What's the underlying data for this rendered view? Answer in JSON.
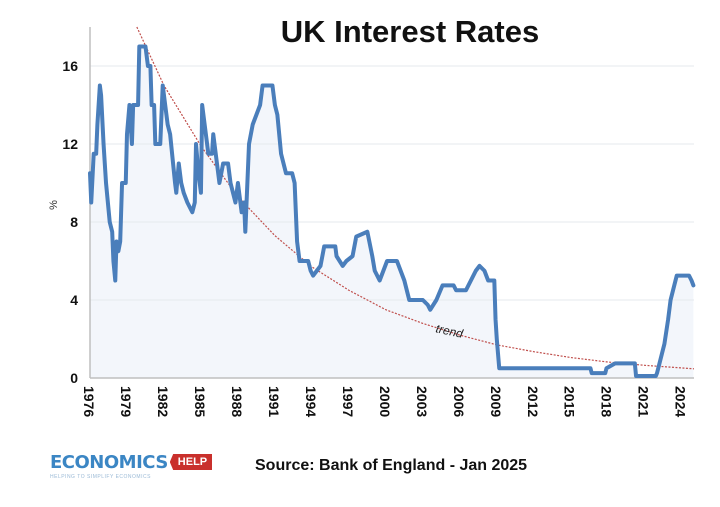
{
  "chart_data": {
    "type": "line",
    "title": "UK Interest Rates",
    "ylabel": "%",
    "xlabel": "",
    "ylim": [
      0,
      18
    ],
    "xlim": [
      1976,
      2025
    ],
    "yticks": [
      "0",
      "4",
      "8",
      "12",
      "16"
    ],
    "xticks": [
      "1976",
      "1979",
      "1982",
      "1985",
      "1988",
      "1991",
      "1994",
      "1997",
      "2000",
      "2003",
      "2006",
      "2009",
      "2012",
      "2015",
      "2018",
      "2021",
      "2024"
    ],
    "grid": "horizontal",
    "colors": {
      "rate": "#4a7ebb",
      "trend": "#c0504d",
      "fill": "#f3f6fb"
    },
    "series": [
      {
        "values": [
          [
            1976.0,
            10.5
          ],
          [
            1976.1,
            9
          ],
          [
            1976.3,
            11.5
          ],
          [
            1976.5,
            11.5
          ],
          [
            1976.6,
            13
          ],
          [
            1976.8,
            15
          ],
          [
            1976.9,
            14.5
          ],
          [
            1977.1,
            12
          ],
          [
            1977.3,
            10
          ],
          [
            1977.6,
            8
          ],
          [
            1977.8,
            7.5
          ],
          [
            1977.9,
            6
          ],
          [
            1978.05,
            5
          ],
          [
            1978.15,
            7
          ],
          [
            1978.3,
            6.5
          ],
          [
            1978.45,
            7
          ],
          [
            1978.6,
            10
          ],
          [
            1978.9,
            10
          ],
          [
            1979.0,
            12.5
          ],
          [
            1979.2,
            14
          ],
          [
            1979.4,
            12
          ],
          [
            1979.5,
            14
          ],
          [
            1979.9,
            14
          ],
          [
            1980.0,
            17
          ],
          [
            1980.5,
            17
          ],
          [
            1980.7,
            16
          ],
          [
            1980.9,
            16
          ],
          [
            1981.0,
            14
          ],
          [
            1981.2,
            14
          ],
          [
            1981.3,
            12
          ],
          [
            1981.7,
            12
          ],
          [
            1981.9,
            15
          ],
          [
            1982.0,
            14.5
          ],
          [
            1982.3,
            13
          ],
          [
            1982.5,
            12.5
          ],
          [
            1982.9,
            10
          ],
          [
            1983.0,
            9.5
          ],
          [
            1983.2,
            11
          ],
          [
            1983.4,
            10
          ],
          [
            1983.6,
            9.5
          ],
          [
            1983.9,
            9
          ],
          [
            1984.3,
            8.5
          ],
          [
            1984.5,
            9
          ],
          [
            1984.6,
            12
          ],
          [
            1984.8,
            10.5
          ],
          [
            1985.0,
            9.5
          ],
          [
            1985.1,
            14
          ],
          [
            1985.4,
            12.5
          ],
          [
            1985.6,
            11.5
          ],
          [
            1985.9,
            11.5
          ],
          [
            1986.0,
            12.5
          ],
          [
            1986.3,
            11
          ],
          [
            1986.5,
            10
          ],
          [
            1986.8,
            11
          ],
          [
            1987.2,
            11
          ],
          [
            1987.4,
            10
          ],
          [
            1987.8,
            9
          ],
          [
            1988.0,
            10
          ],
          [
            1988.3,
            8.5
          ],
          [
            1988.5,
            9
          ],
          [
            1988.6,
            7.5
          ],
          [
            1988.9,
            12
          ],
          [
            1989.2,
            13
          ],
          [
            1989.5,
            13.5
          ],
          [
            1989.8,
            14
          ],
          [
            1990.0,
            15
          ],
          [
            1990.8,
            15
          ],
          [
            1991.0,
            14
          ],
          [
            1991.2,
            13.5
          ],
          [
            1991.5,
            11.5
          ],
          [
            1991.9,
            10.5
          ],
          [
            1992.4,
            10.5
          ],
          [
            1992.6,
            10
          ],
          [
            1992.8,
            7
          ],
          [
            1993.0,
            6
          ],
          [
            1993.7,
            6
          ],
          [
            1993.9,
            5.5
          ],
          [
            1994.1,
            5.25
          ],
          [
            1994.7,
            5.75
          ],
          [
            1995.0,
            6.75
          ],
          [
            1995.9,
            6.75
          ],
          [
            1996.0,
            6.25
          ],
          [
            1996.5,
            5.75
          ],
          [
            1996.8,
            6
          ],
          [
            1997.3,
            6.25
          ],
          [
            1997.6,
            7.25
          ],
          [
            1998.5,
            7.5
          ],
          [
            1998.9,
            6.25
          ],
          [
            1999.1,
            5.5
          ],
          [
            1999.5,
            5
          ],
          [
            1999.8,
            5.5
          ],
          [
            2000.1,
            6
          ],
          [
            2000.9,
            6
          ],
          [
            2001.2,
            5.5
          ],
          [
            2001.5,
            5
          ],
          [
            2001.9,
            4
          ],
          [
            2003.0,
            4
          ],
          [
            2003.4,
            3.75
          ],
          [
            2003.6,
            3.5
          ],
          [
            2004.1,
            4
          ],
          [
            2004.6,
            4.75
          ],
          [
            2005.5,
            4.75
          ],
          [
            2005.7,
            4.5
          ],
          [
            2006.5,
            4.5
          ],
          [
            2006.9,
            5
          ],
          [
            2007.3,
            5.5
          ],
          [
            2007.6,
            5.75
          ],
          [
            2008.0,
            5.5
          ],
          [
            2008.3,
            5
          ],
          [
            2008.8,
            5
          ],
          [
            2008.9,
            3
          ],
          [
            2009.0,
            2
          ],
          [
            2009.2,
            0.5
          ],
          [
            2016.6,
            0.5
          ],
          [
            2016.7,
            0.25
          ],
          [
            2017.8,
            0.25
          ],
          [
            2017.9,
            0.5
          ],
          [
            2018.6,
            0.75
          ],
          [
            2020.2,
            0.75
          ],
          [
            2020.3,
            0.1
          ],
          [
            2021.9,
            0.1
          ],
          [
            2022.0,
            0.25
          ],
          [
            2022.2,
            0.75
          ],
          [
            2022.4,
            1.25
          ],
          [
            2022.6,
            1.75
          ],
          [
            2022.9,
            3
          ],
          [
            2023.1,
            4
          ],
          [
            2023.3,
            4.5
          ],
          [
            2023.5,
            5
          ],
          [
            2023.6,
            5.25
          ],
          [
            2024.6,
            5.25
          ],
          [
            2024.8,
            5
          ],
          [
            2024.95,
            4.75
          ]
        ]
      },
      {
        "annotation": "trend",
        "values": [
          [
            1979.8,
            18
          ],
          [
            1982,
            15
          ],
          [
            1985,
            11.9
          ],
          [
            1988,
            9.3
          ],
          [
            1991,
            7.3
          ],
          [
            1994,
            5.7
          ],
          [
            1997,
            4.5
          ],
          [
            2000,
            3.5
          ],
          [
            2003,
            2.8
          ],
          [
            2006,
            2.2
          ],
          [
            2009,
            1.7
          ],
          [
            2012,
            1.35
          ],
          [
            2015,
            1.05
          ],
          [
            2018,
            0.82
          ],
          [
            2021,
            0.65
          ],
          [
            2025,
            0.47
          ]
        ]
      }
    ]
  },
  "source": "Source: Bank of England - Jan 2025",
  "logo": {
    "text": "ECONOMICS",
    "badge": "HELP",
    "tagline": "HELPING TO SIMPLIFY ECONOMICS"
  }
}
